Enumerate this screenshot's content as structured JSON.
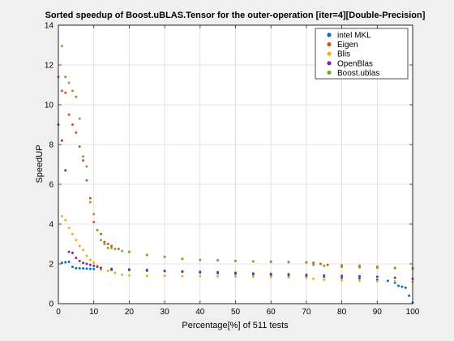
{
  "chart_data": {
    "type": "scatter",
    "title": "Sorted speedup of Boost.uBLAS.Tensor for the outer-operation [iter=4][Double-Precision]",
    "xlabel": "Percentage[%] of 511 tests",
    "ylabel": "SpeedUP",
    "xlim": [
      0,
      100
    ],
    "ylim": [
      0,
      14
    ],
    "xticks": [
      "0",
      "10",
      "20",
      "30",
      "40",
      "50",
      "60",
      "70",
      "80",
      "90",
      "100"
    ],
    "yticks": [
      "0",
      "2",
      "4",
      "6",
      "8",
      "10",
      "12",
      "14"
    ],
    "grid": true,
    "legend_position": "top-right",
    "series": [
      {
        "name": "intel MKL",
        "color": "#0072bd",
        "points": [
          [
            1,
            2.05
          ],
          [
            2,
            2.08
          ],
          [
            3,
            2.1
          ],
          [
            4,
            1.85
          ],
          [
            5,
            1.78
          ],
          [
            6,
            1.78
          ],
          [
            7,
            1.77
          ],
          [
            8,
            1.76
          ],
          [
            9,
            1.75
          ],
          [
            10,
            1.74
          ],
          [
            12,
            1.72
          ],
          [
            15,
            1.7
          ],
          [
            20,
            1.69
          ],
          [
            25,
            1.66
          ],
          [
            30,
            1.64
          ],
          [
            35,
            1.6
          ],
          [
            40,
            1.56
          ],
          [
            45,
            1.53
          ],
          [
            50,
            1.5
          ],
          [
            55,
            1.47
          ],
          [
            60,
            1.44
          ],
          [
            65,
            1.41
          ],
          [
            70,
            1.38
          ],
          [
            75,
            1.35
          ],
          [
            80,
            1.3
          ],
          [
            85,
            1.27
          ],
          [
            90,
            1.2
          ],
          [
            93,
            1.15
          ],
          [
            95,
            1.05
          ],
          [
            96,
            0.9
          ],
          [
            97,
            0.85
          ],
          [
            98,
            0.8
          ],
          [
            99,
            0.4
          ],
          [
            100,
            0.05
          ]
        ]
      },
      {
        "name": "Eigen",
        "color": "#d95319",
        "points": [
          [
            0,
            11.4
          ],
          [
            1,
            10.7
          ],
          [
            2,
            10.6
          ],
          [
            3,
            9.5
          ],
          [
            4,
            9.0
          ],
          [
            5,
            8.6
          ],
          [
            6,
            7.9
          ],
          [
            7,
            7.2
          ],
          [
            8,
            6.2
          ],
          [
            9,
            5.3
          ],
          [
            10,
            4.1
          ],
          [
            11,
            3.7
          ],
          [
            12,
            3.5
          ],
          [
            13,
            3.1
          ],
          [
            14,
            3.0
          ],
          [
            15,
            2.9
          ],
          [
            17,
            2.75
          ],
          [
            20,
            2.6
          ],
          [
            25,
            2.45
          ],
          [
            30,
            2.35
          ],
          [
            35,
            2.25
          ],
          [
            40,
            2.2
          ],
          [
            45,
            2.18
          ],
          [
            50,
            2.15
          ],
          [
            55,
            2.13
          ],
          [
            60,
            2.1
          ],
          [
            65,
            2.08
          ],
          [
            70,
            2.07
          ],
          [
            72,
            2.05
          ],
          [
            74,
            2.0
          ],
          [
            76,
            1.95
          ],
          [
            80,
            1.92
          ],
          [
            85,
            1.9
          ],
          [
            90,
            1.85
          ],
          [
            95,
            1.8
          ],
          [
            100,
            1.78
          ]
        ]
      },
      {
        "name": "Blis",
        "color": "#edb120",
        "points": [
          [
            1,
            4.4
          ],
          [
            2,
            4.2
          ],
          [
            3,
            3.8
          ],
          [
            4,
            3.5
          ],
          [
            5,
            3.2
          ],
          [
            6,
            2.9
          ],
          [
            7,
            2.7
          ],
          [
            8,
            2.4
          ],
          [
            9,
            2.2
          ],
          [
            10,
            2.05
          ],
          [
            11,
            1.9
          ],
          [
            12,
            1.7
          ],
          [
            14,
            1.65
          ],
          [
            16,
            1.55
          ],
          [
            18,
            1.45
          ],
          [
            20,
            1.42
          ],
          [
            25,
            1.4
          ],
          [
            30,
            1.4
          ],
          [
            35,
            1.39
          ],
          [
            40,
            1.38
          ],
          [
            45,
            1.37
          ],
          [
            50,
            1.36
          ],
          [
            55,
            1.35
          ],
          [
            60,
            1.34
          ],
          [
            65,
            1.32
          ],
          [
            70,
            1.3
          ],
          [
            72,
            1.25
          ],
          [
            75,
            1.2
          ],
          [
            80,
            1.18
          ],
          [
            85,
            1.15
          ],
          [
            90,
            1.12
          ],
          [
            95,
            1.12
          ],
          [
            100,
            1.1
          ]
        ]
      },
      {
        "name": "OpenBlas",
        "color": "#7e2f8e",
        "points": [
          [
            0,
            9.0
          ],
          [
            1,
            8.2
          ],
          [
            2,
            6.7
          ],
          [
            3,
            2.6
          ],
          [
            4,
            2.55
          ],
          [
            5,
            2.3
          ],
          [
            6,
            2.15
          ],
          [
            7,
            2.05
          ],
          [
            8,
            2.0
          ],
          [
            9,
            1.95
          ],
          [
            10,
            1.9
          ],
          [
            11,
            1.85
          ],
          [
            12,
            1.8
          ],
          [
            15,
            1.75
          ],
          [
            20,
            1.72
          ],
          [
            25,
            1.7
          ],
          [
            30,
            1.65
          ],
          [
            35,
            1.62
          ],
          [
            40,
            1.6
          ],
          [
            45,
            1.58
          ],
          [
            50,
            1.55
          ],
          [
            55,
            1.52
          ],
          [
            60,
            1.5
          ],
          [
            65,
            1.48
          ],
          [
            70,
            1.45
          ],
          [
            75,
            1.42
          ],
          [
            80,
            1.4
          ],
          [
            85,
            1.38
          ],
          [
            90,
            1.35
          ],
          [
            95,
            1.3
          ],
          [
            100,
            1.25
          ]
        ]
      },
      {
        "name": "Boost.ublas",
        "color": "#77ac30",
        "points": [
          [
            1,
            12.95
          ],
          [
            2,
            11.4
          ],
          [
            3,
            11.1
          ],
          [
            4,
            10.7
          ],
          [
            5,
            10.4
          ],
          [
            6,
            9.3
          ],
          [
            7,
            7.4
          ],
          [
            8,
            6.9
          ],
          [
            9,
            5.1
          ],
          [
            10,
            4.5
          ],
          [
            11,
            3.7
          ],
          [
            12,
            3.2
          ],
          [
            13,
            3.0
          ],
          [
            14,
            2.8
          ],
          [
            15,
            2.8
          ],
          [
            16,
            2.75
          ],
          [
            18,
            2.65
          ],
          [
            20,
            2.6
          ],
          [
            25,
            2.45
          ],
          [
            30,
            2.35
          ],
          [
            35,
            2.25
          ],
          [
            40,
            2.2
          ],
          [
            45,
            2.18
          ],
          [
            50,
            2.15
          ],
          [
            55,
            2.13
          ],
          [
            60,
            2.12
          ],
          [
            65,
            2.1
          ],
          [
            70,
            2.08
          ],
          [
            72,
            1.95
          ],
          [
            75,
            1.9
          ],
          [
            80,
            1.85
          ],
          [
            85,
            1.82
          ],
          [
            90,
            1.8
          ],
          [
            95,
            1.78
          ],
          [
            100,
            1.75
          ]
        ]
      }
    ]
  }
}
